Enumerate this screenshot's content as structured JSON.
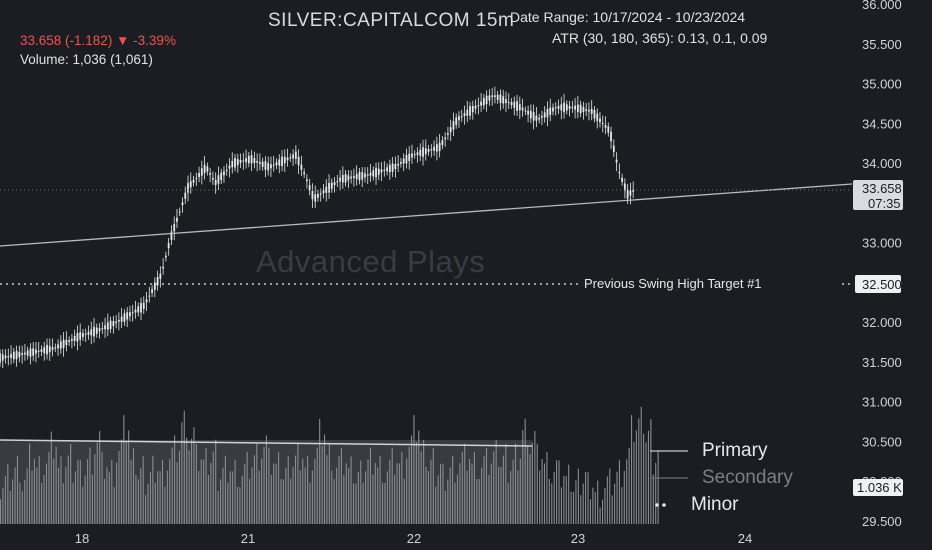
{
  "header": {
    "symbol": "SILVER:CAPITALCOM 15m",
    "date_range": "Date Range: 10/17/2024 - 10/23/2024",
    "atr": "ATR (30, 180, 365): 0.13, 0.1, 0.09",
    "price_change": "33.658 (-1.182) ▼ -3.39%",
    "volume": "Volume: 1,036 (1,061)"
  },
  "watermark": "Advanced Plays",
  "annotations": {
    "swing_label": "Previous Swing High Target #1",
    "swing_price": "32.500",
    "last_price": "33.658",
    "countdown": "07:35",
    "volume_label": "1.036 K"
  },
  "legend": {
    "primary": "Primary",
    "secondary": "Secondary",
    "minor": "Minor"
  },
  "colors": {
    "background": "#1c1d22",
    "candles": "#e8e8e8",
    "volume_bars": "#8a8c93",
    "down_text": "#ef5350",
    "trendline": "#b8bbc2"
  },
  "chart_data": {
    "type": "line",
    "title": "SILVER:CAPITALCOM 15m",
    "y_ticks": [
      "36.000",
      "35.500",
      "35.000",
      "34.500",
      "34.000",
      "33.500",
      "33.000",
      "32.500",
      "32.000",
      "31.500",
      "31.000",
      "30.500",
      "30.000",
      "29.500"
    ],
    "x_ticks": [
      "18",
      "21",
      "22",
      "23",
      "24"
    ],
    "ylim": [
      29.5,
      36.0
    ],
    "price_path": [
      {
        "t": 0.0,
        "p": 31.55
      },
      {
        "t": 0.06,
        "p": 31.67
      },
      {
        "t": 0.09,
        "p": 31.83
      },
      {
        "t": 0.11,
        "p": 31.9
      },
      {
        "t": 0.13,
        "p": 32.0
      },
      {
        "t": 0.16,
        "p": 32.2
      },
      {
        "t": 0.18,
        "p": 32.6
      },
      {
        "t": 0.19,
        "p": 33.05
      },
      {
        "t": 0.21,
        "p": 33.7
      },
      {
        "t": 0.23,
        "p": 33.95
      },
      {
        "t": 0.24,
        "p": 33.75
      },
      {
        "t": 0.26,
        "p": 34.0
      },
      {
        "t": 0.28,
        "p": 34.05
      },
      {
        "t": 0.3,
        "p": 33.95
      },
      {
        "t": 0.33,
        "p": 34.1
      },
      {
        "t": 0.34,
        "p": 33.85
      },
      {
        "t": 0.35,
        "p": 33.55
      },
      {
        "t": 0.38,
        "p": 33.8
      },
      {
        "t": 0.41,
        "p": 33.85
      },
      {
        "t": 0.44,
        "p": 33.95
      },
      {
        "t": 0.46,
        "p": 34.1
      },
      {
        "t": 0.49,
        "p": 34.2
      },
      {
        "t": 0.51,
        "p": 34.55
      },
      {
        "t": 0.53,
        "p": 34.7
      },
      {
        "t": 0.55,
        "p": 34.85
      },
      {
        "t": 0.58,
        "p": 34.7
      },
      {
        "t": 0.6,
        "p": 34.55
      },
      {
        "t": 0.62,
        "p": 34.7
      },
      {
        "t": 0.64,
        "p": 34.7
      },
      {
        "t": 0.66,
        "p": 34.65
      },
      {
        "t": 0.68,
        "p": 34.4
      },
      {
        "t": 0.69,
        "p": 33.9
      },
      {
        "t": 0.7,
        "p": 33.6
      },
      {
        "t": 0.706,
        "p": 33.65
      }
    ],
    "volume_levels": [
      0.3,
      0.4,
      0.5,
      0.35,
      0.6,
      0.45,
      0.5,
      0.7,
      0.4,
      0.55,
      0.5,
      0.45,
      0.6,
      0.8,
      0.5,
      0.4,
      0.65,
      0.9,
      0.5,
      0.4,
      0.35,
      0.5,
      0.45,
      0.6,
      0.7,
      1.0,
      0.8,
      0.55,
      0.5,
      0.6,
      0.4,
      0.5,
      0.45,
      0.4,
      0.5,
      0.6,
      0.7,
      0.5,
      0.45,
      0.4,
      0.55,
      0.65,
      0.5,
      0.6,
      0.9,
      0.6,
      0.45,
      0.5,
      0.4,
      0.35,
      0.5,
      0.6,
      0.5,
      0.45,
      0.55,
      0.5,
      0.7,
      0.9,
      0.6,
      0.5,
      0.45,
      0.4,
      0.5,
      0.55,
      0.6,
      0.5,
      0.45,
      0.5,
      0.6,
      0.55,
      0.5,
      0.65,
      0.95,
      0.8,
      0.6,
      0.5,
      0.4,
      0.35,
      0.3,
      0.25,
      0.35,
      0.3,
      0.2,
      0.25,
      0.3,
      0.4,
      0.55,
      0.9,
      1.0,
      0.85,
      0.6
    ]
  }
}
